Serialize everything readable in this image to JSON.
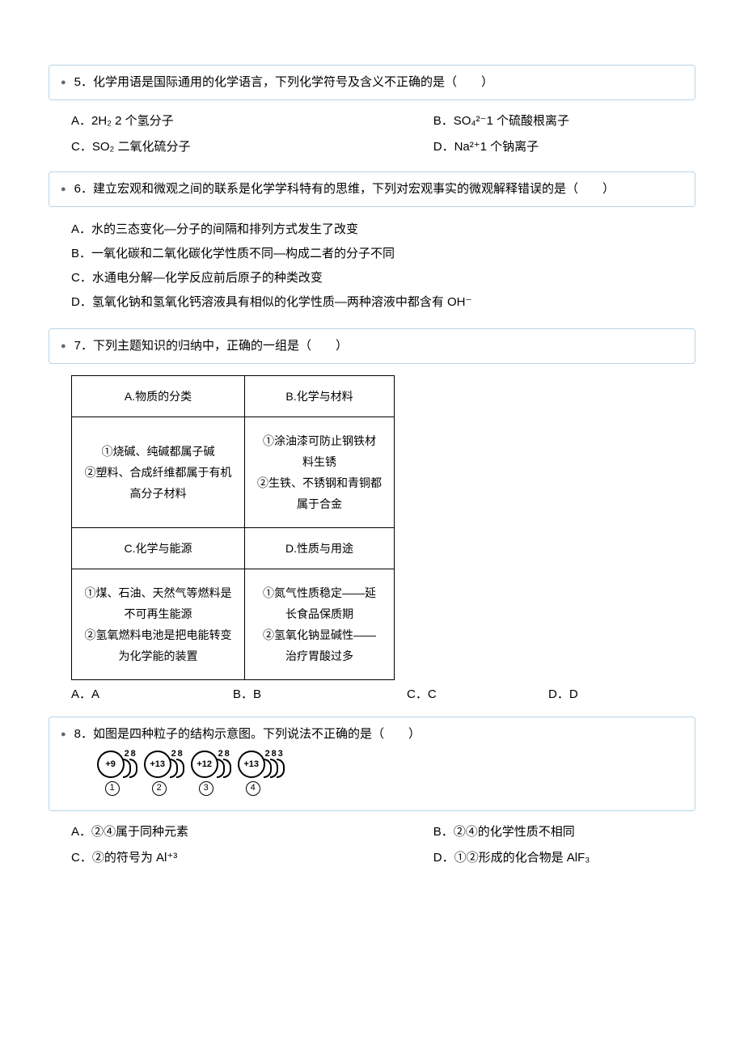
{
  "q5": {
    "number": "5",
    "text": "．化学用语是国际通用的化学语言，下列化学符号及含义不正确的是（　　）",
    "options": {
      "A": "A．2H₂ 2 个氢分子",
      "B": "B．SO₄²⁻1 个硫酸根离子",
      "C": "C．SO₂ 二氧化硫分子",
      "D": "D．Na²⁺1 个钠离子"
    }
  },
  "q6": {
    "number": "6",
    "text": "．建立宏观和微观之间的联系是化学学科特有的思维，下列对宏观事实的微观解释错误的是（　　）",
    "options": {
      "A": "A．水的三态变化—分子的间隔和排列方式发生了改变",
      "B": "B．一氧化碳和二氧化碳化学性质不同—构成二者的分子不同",
      "C": "C．水通电分解—化学反应前后原子的种类改变",
      "D": "D．氢氧化钠和氢氧化钙溶液具有相似的化学性质—两种溶液中都含有 OH⁻"
    }
  },
  "q7": {
    "number": "7",
    "text": "．下列主题知识的归纳中，正确的一组是（　　）",
    "table": {
      "headers": {
        "A": "A.物质的分类",
        "B": "B.化学与材料",
        "C": "C.化学与能源",
        "D": "D.性质与用途"
      },
      "cells": {
        "A": "①烧碱、纯碱都属于碱\n②塑料、合成纤维都属于有机高分子材料",
        "B": "①涂油漆可防止钢铁材料生锈\n②生铁、不锈钢和青铜都属于合金",
        "C": "①煤、石油、天然气等燃料是不可再生能源\n②氢氧燃料电池是把电能转变为化学能的装置",
        "D": "①氮气性质稳定——延长食品保质期\n②氢氧化钠显碱性——治疗胃酸过多"
      }
    },
    "answers": {
      "A": "A．A",
      "B": "B．B",
      "C": "C．C",
      "D": "D．D"
    }
  },
  "q8": {
    "number": "8",
    "text": "．如图是四种粒子的结构示意图。下列说法不正确的是（　　）",
    "atoms": [
      {
        "nucleus": "+9",
        "shells": [
          "2",
          "8"
        ],
        "label": "①"
      },
      {
        "nucleus": "+13",
        "shells": [
          "2",
          "8"
        ],
        "label": "②"
      },
      {
        "nucleus": "+12",
        "shells": [
          "2",
          "8"
        ],
        "label": "③"
      },
      {
        "nucleus": "+13",
        "shells": [
          "2",
          "8",
          "3"
        ],
        "label": "④"
      }
    ],
    "options": {
      "A": "A．②④属于同种元素",
      "B": "B．②④的化学性质不相同",
      "C": "C．②的符号为 Al⁺³",
      "D": "D．①②形成的化合物是 AlF₃"
    }
  }
}
